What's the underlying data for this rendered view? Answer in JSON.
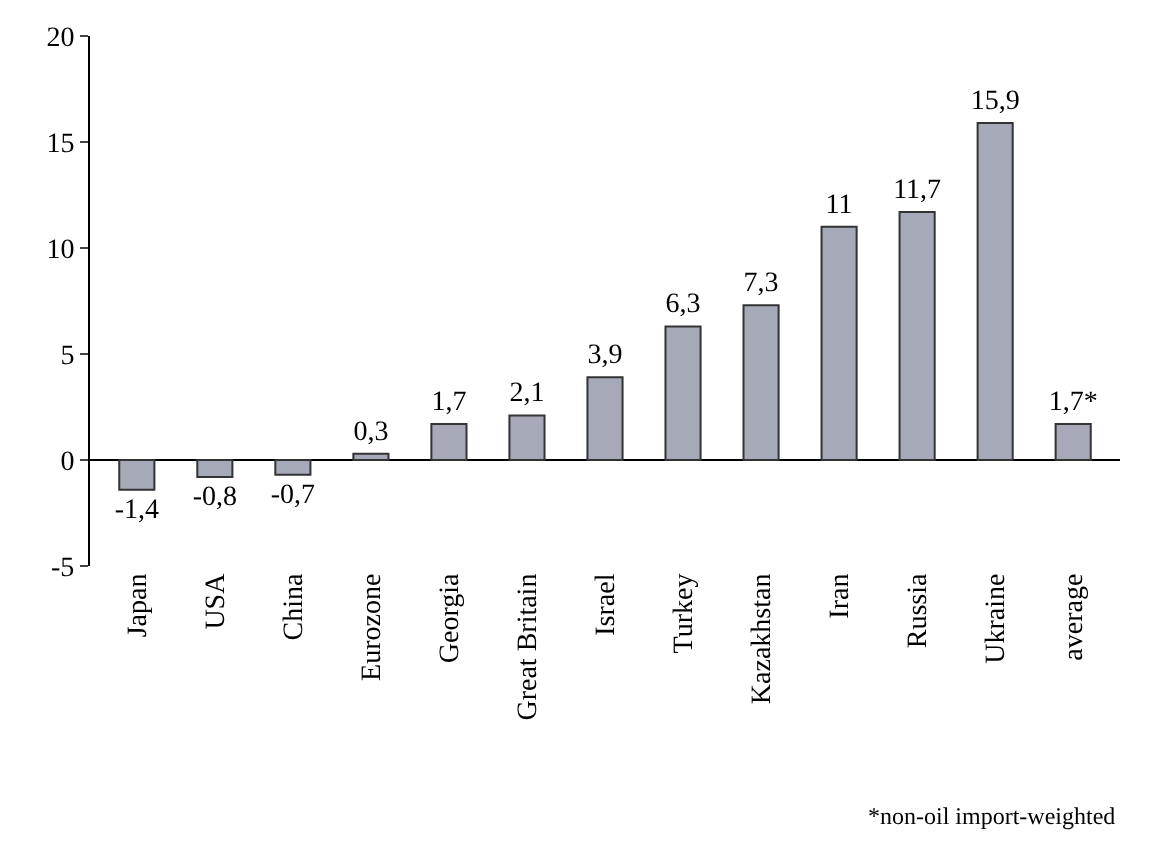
{
  "chart_data": {
    "type": "bar",
    "categories": [
      "Japan",
      "USA",
      "China",
      "Eurozone",
      "Georgia",
      "Great Britain",
      "Israel",
      "Turkey",
      "Kazakhstan",
      "Iran",
      "Russia",
      "Ukraine",
      "average"
    ],
    "values": [
      -1.4,
      -0.8,
      -0.7,
      0.3,
      1.7,
      2.1,
      3.9,
      6.3,
      7.3,
      11,
      11.7,
      15.9,
      1.7
    ],
    "value_labels": [
      "-1,4",
      "-0,8",
      "-0,7",
      "0,3",
      "1,7",
      "2,1",
      "3,9",
      "6,3",
      "7,3",
      "11",
      "11,7",
      "15,9",
      "1,7*"
    ],
    "color": "#a6a9b8",
    "ylim": [
      -5,
      20
    ],
    "yticks": [
      {
        "value": -5,
        "label": "-5"
      },
      0,
      5,
      10,
      15,
      20
    ],
    "legend": false,
    "annotations": [
      "*non-oil import-weighted"
    ]
  }
}
